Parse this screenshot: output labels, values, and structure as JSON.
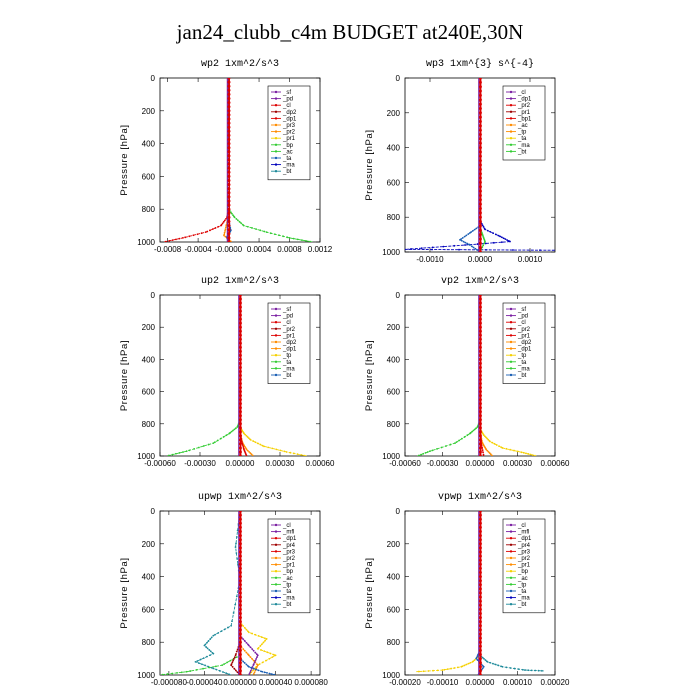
{
  "title": "jan24_clubb_c4m  BUDGET at240E,30N",
  "colors": {
    "red": "#dd0000",
    "purple": "#7a1fa2",
    "orange": "#ff8c00",
    "yellow": "#f5d000",
    "green": "#33cc33",
    "blue": "#1a5fb4",
    "navy": "#0000bb",
    "teal": "#1e8a9a",
    "cyan": "#00cccc",
    "magenta": "#c000c0",
    "darkred": "#a00000"
  },
  "chart_data": [
    {
      "type": "line",
      "title": "wp2   1xm^2/s^3",
      "ylabel": "Pressure [hPa]",
      "xlim": [
        -0.0009,
        0.0012
      ],
      "ylim": [
        1000,
        0
      ],
      "xticks": [
        -0.0008,
        -0.0004,
        0.0,
        0.0004,
        0.0008,
        0.0012
      ],
      "xtick_labels": [
        "-0.0008",
        "-0.0004",
        "-0.0000",
        "0.0004",
        "0.0008",
        "0.0012"
      ],
      "yticks": [
        0,
        200,
        400,
        600,
        800,
        1000
      ],
      "legend": [
        "_sf",
        "_pd",
        "_cl",
        "_dp2",
        "_dp1",
        "_pr3",
        "_pr2",
        "_pr1",
        "_bp",
        "_ac",
        "_ta",
        "_ma",
        "_bt"
      ],
      "series": [
        {
          "name": "_dp1",
          "color": "red",
          "x": [
            0,
            0,
            -2e-05,
            -0.0001,
            -0.0003,
            -0.0006,
            -0.00085
          ],
          "y": [
            0,
            800,
            850,
            900,
            940,
            975,
            1000
          ]
        },
        {
          "name": "_bp",
          "color": "green",
          "x": [
            0,
            0,
            8e-05,
            0.0002,
            0.0005,
            0.0008,
            0.0011
          ],
          "y": [
            0,
            800,
            850,
            900,
            940,
            975,
            1000
          ]
        },
        {
          "name": "_pr1",
          "color": "orange",
          "x": [
            0,
            0,
            -3e-05,
            -6e-05,
            4e-05
          ],
          "y": [
            0,
            840,
            900,
            960,
            1000
          ]
        },
        {
          "name": "_pd",
          "color": "purple",
          "x": [
            0,
            0,
            2e-05,
            -2e-05,
            0
          ],
          "y": [
            0,
            850,
            920,
            970,
            1000
          ]
        },
        {
          "name": "_ac",
          "color": "blue",
          "x": [
            0,
            0,
            3e-05,
            -2e-05,
            0
          ],
          "y": [
            0,
            870,
            930,
            970,
            1000
          ]
        }
      ]
    },
    {
      "type": "line",
      "title": "wp3   1xm^{3} s^{-4}",
      "ylabel": "Pressure [hPa]",
      "xlim": [
        -0.0015,
        0.0015
      ],
      "ylim": [
        1000,
        0
      ],
      "xticks": [
        -0.001,
        0.0,
        0.001
      ],
      "xtick_labels": [
        "-0.0010",
        "0.0000",
        "0.0010"
      ],
      "yticks": [
        0,
        200,
        400,
        600,
        800,
        1000
      ],
      "legend": [
        "_cl",
        "_dp1",
        "_pr2",
        "_pr1",
        "_bp1",
        "_ac",
        "_tp",
        "_ta",
        "_ma",
        "_bt"
      ],
      "series": [
        {
          "name": "_ta",
          "color": "navy",
          "x": [
            0,
            0,
            0.0001,
            0.0004,
            0.0006,
            -0.0003,
            -0.0015,
            0.0015
          ],
          "y": [
            0,
            820,
            870,
            910,
            940,
            960,
            985,
            990
          ]
        },
        {
          "name": "_tp",
          "color": "blue",
          "x": [
            0,
            0,
            -0.0002,
            -0.0004,
            -0.0002,
            0
          ],
          "y": [
            0,
            850,
            890,
            930,
            960,
            1000
          ]
        },
        {
          "name": "_ac",
          "color": "green",
          "x": [
            0,
            0,
            5e-05,
            0.0001,
            0
          ],
          "y": [
            0,
            860,
            900,
            940,
            1000
          ]
        },
        {
          "name": "_cl",
          "color": "purple",
          "x": [
            0,
            0,
            0
          ],
          "y": [
            0,
            800,
            1000
          ]
        },
        {
          "name": "_dp1",
          "color": "red",
          "x": [
            0,
            0,
            0
          ],
          "y": [
            0,
            800,
            1000
          ]
        }
      ]
    },
    {
      "type": "line",
      "title": "up2   1xm^2/s^3",
      "ylabel": "Pressure [hPa]",
      "xlim": [
        -0.0006,
        0.0006
      ],
      "ylim": [
        1000,
        0
      ],
      "xticks": [
        -0.0006,
        -0.0003,
        0.0,
        0.0003,
        0.0006
      ],
      "xtick_labels": [
        "-0.00060",
        "-0.00030",
        "0.00000",
        "0.00030",
        "0.00060"
      ],
      "yticks": [
        0,
        200,
        400,
        600,
        800,
        1000
      ],
      "legend": [
        "_sf",
        "_pd",
        "_cl",
        "_pr2",
        "_pr1",
        "_dp2",
        "_dp1",
        "_tp",
        "_ta",
        "_ma",
        "_bt"
      ],
      "series": [
        {
          "name": "_dp2",
          "color": "green",
          "x": [
            0,
            0,
            -2e-05,
            -8e-05,
            -0.0002,
            -0.0004,
            -0.00055
          ],
          "y": [
            0,
            780,
            820,
            860,
            920,
            970,
            1000
          ]
        },
        {
          "name": "_pr1",
          "color": "yellow",
          "x": [
            0,
            0,
            3e-05,
            8e-05,
            0.00018,
            0.00035,
            0.0005
          ],
          "y": [
            0,
            820,
            860,
            900,
            940,
            975,
            1000
          ]
        },
        {
          "name": "_pr2",
          "color": "orange",
          "x": [
            0,
            0,
            2e-05,
            5e-05,
            0.0001
          ],
          "y": [
            0,
            860,
            920,
            960,
            1000
          ]
        },
        {
          "name": "_dp1",
          "color": "red",
          "x": [
            0,
            0,
            1e-05,
            3e-05,
            5e-05
          ],
          "y": [
            0,
            800,
            900,
            960,
            1000
          ]
        }
      ]
    },
    {
      "type": "line",
      "title": "vp2   1xm^2/s^3",
      "ylabel": "Pressure [hPa]",
      "xlim": [
        -0.0006,
        0.0006
      ],
      "ylim": [
        1000,
        0
      ],
      "xticks": [
        -0.0006,
        -0.0003,
        0.0,
        0.0003,
        0.0006
      ],
      "xtick_labels": [
        "-0.00060",
        "-0.00030",
        "0.00000",
        "0.00030",
        "0.00060"
      ],
      "yticks": [
        0,
        200,
        400,
        600,
        800,
        1000
      ],
      "legend": [
        "_sf",
        "_pd",
        "_cl",
        "_pr2",
        "_pr1",
        "_dp2",
        "_dp1",
        "_tp",
        "_ta",
        "_ma",
        "_bt"
      ],
      "series": [
        {
          "name": "_dp2",
          "color": "green",
          "x": [
            0,
            0,
            -2e-05,
            -8e-05,
            -0.0002,
            -0.0004,
            -0.0005
          ],
          "y": [
            0,
            780,
            820,
            860,
            920,
            970,
            1000
          ]
        },
        {
          "name": "_pr1",
          "color": "yellow",
          "x": [
            0,
            0,
            3e-05,
            8e-05,
            0.00018,
            0.00035,
            0.00045
          ],
          "y": [
            0,
            830,
            870,
            910,
            950,
            980,
            1000
          ]
        },
        {
          "name": "_pr2",
          "color": "orange",
          "x": [
            0,
            0,
            2e-05,
            5e-05,
            0.0001
          ],
          "y": [
            0,
            860,
            920,
            960,
            1000
          ]
        },
        {
          "name": "_dp1",
          "color": "red",
          "x": [
            0,
            0,
            1e-05,
            3e-05
          ],
          "y": [
            0,
            800,
            920,
            1000
          ]
        }
      ]
    },
    {
      "type": "line",
      "title": "upwp   1xm^2/s^3",
      "ylabel": "Pressure [hPa]",
      "xlim": [
        -9e-05,
        9e-05
      ],
      "ylim": [
        1000,
        0
      ],
      "xticks": [
        -8e-05,
        -4e-05,
        0.0,
        4e-05,
        8e-05
      ],
      "xtick_labels": [
        "-0.000080",
        "-0.000040",
        "0.000000",
        "0.000040",
        "0.000080"
      ],
      "yticks": [
        0,
        200,
        400,
        600,
        800,
        1000
      ],
      "legend": [
        "_cl",
        "_mfl",
        "_dp1",
        "_pr4",
        "_pr3",
        "_pr2",
        "_pr1",
        "_bp",
        "_ac",
        "_tp",
        "_ta",
        "_ma",
        "_bt"
      ],
      "series": [
        {
          "name": "_tp",
          "color": "teal",
          "x": [
            0,
            -5e-06,
            0,
            -1e-05,
            -3e-05,
            -4e-05,
            -3e-05,
            -5e-05,
            -3e-05,
            -1e-05
          ],
          "y": [
            0,
            220,
            420,
            700,
            760,
            820,
            870,
            920,
            960,
            1000
          ]
        },
        {
          "name": "_pr1",
          "color": "yellow",
          "x": [
            0,
            0,
            1e-05,
            3e-05,
            2e-05,
            4e-05,
            2e-05,
            1e-05
          ],
          "y": [
            0,
            680,
            740,
            780,
            840,
            880,
            940,
            1000
          ]
        },
        {
          "name": "_bp",
          "color": "green",
          "x": [
            0,
            0,
            -2e-05,
            -6e-05,
            -9e-05
          ],
          "y": [
            0,
            880,
            940,
            980,
            1000
          ]
        },
        {
          "name": "_pr2",
          "color": "orange",
          "x": [
            0,
            0,
            1e-05,
            2e-05,
            1.5e-05
          ],
          "y": [
            0,
            820,
            880,
            940,
            1000
          ]
        },
        {
          "name": "_mfl",
          "color": "purple",
          "x": [
            0,
            0,
            1e-05,
            2e-05,
            1.5e-05,
            1e-05
          ],
          "y": [
            0,
            760,
            820,
            880,
            940,
            1000
          ]
        },
        {
          "name": "_dp1",
          "color": "darkred",
          "x": [
            0,
            0,
            -5e-06,
            -1e-05,
            0
          ],
          "y": [
            0,
            800,
            880,
            940,
            1000
          ]
        },
        {
          "name": "_ac",
          "color": "blue",
          "x": [
            0,
            0,
            1e-05,
            2.5e-05,
            4e-05
          ],
          "y": [
            0,
            900,
            950,
            980,
            1000
          ]
        },
        {
          "name": "_cl",
          "color": "magenta",
          "x": [
            0,
            0,
            0
          ],
          "y": [
            0,
            800,
            1000
          ]
        }
      ]
    },
    {
      "type": "line",
      "title": "vpwp   1xm^2/s^3",
      "ylabel": "Pressure [hPa]",
      "xlim": [
        -0.0002,
        0.0002
      ],
      "ylim": [
        1000,
        0
      ],
      "xticks": [
        -0.0002,
        -0.0001,
        0.0,
        0.0001,
        0.0002
      ],
      "xtick_labels": [
        "-0.00020",
        "-0.00010",
        "0.00000",
        "0.00010",
        "0.00020"
      ],
      "yticks": [
        0,
        200,
        400,
        600,
        800,
        1000
      ],
      "legend": [
        "_cl",
        "_mfl",
        "_dp1",
        "_pr4",
        "_pr3",
        "_pr2",
        "_pr1",
        "_bp",
        "_ac",
        "_tp",
        "_ta",
        "_ma",
        "_bt"
      ],
      "series": [
        {
          "name": "_pr1",
          "color": "yellow",
          "x": [
            0,
            0,
            -2e-05,
            -5e-05,
            -0.0001,
            -0.00017
          ],
          "y": [
            0,
            880,
            920,
            950,
            970,
            980
          ]
        },
        {
          "name": "_ac",
          "color": "teal",
          "x": [
            0,
            0,
            2e-05,
            6e-05,
            0.00012,
            0.00017
          ],
          "y": [
            0,
            880,
            920,
            950,
            970,
            975
          ]
        },
        {
          "name": "_tp",
          "color": "blue",
          "x": [
            0,
            0,
            -1e-05,
            1e-05,
            -5e-06
          ],
          "y": [
            0,
            850,
            900,
            950,
            1000
          ]
        },
        {
          "name": "_mfl",
          "color": "purple",
          "x": [
            0,
            0,
            0
          ],
          "y": [
            0,
            800,
            1000
          ]
        }
      ]
    }
  ]
}
